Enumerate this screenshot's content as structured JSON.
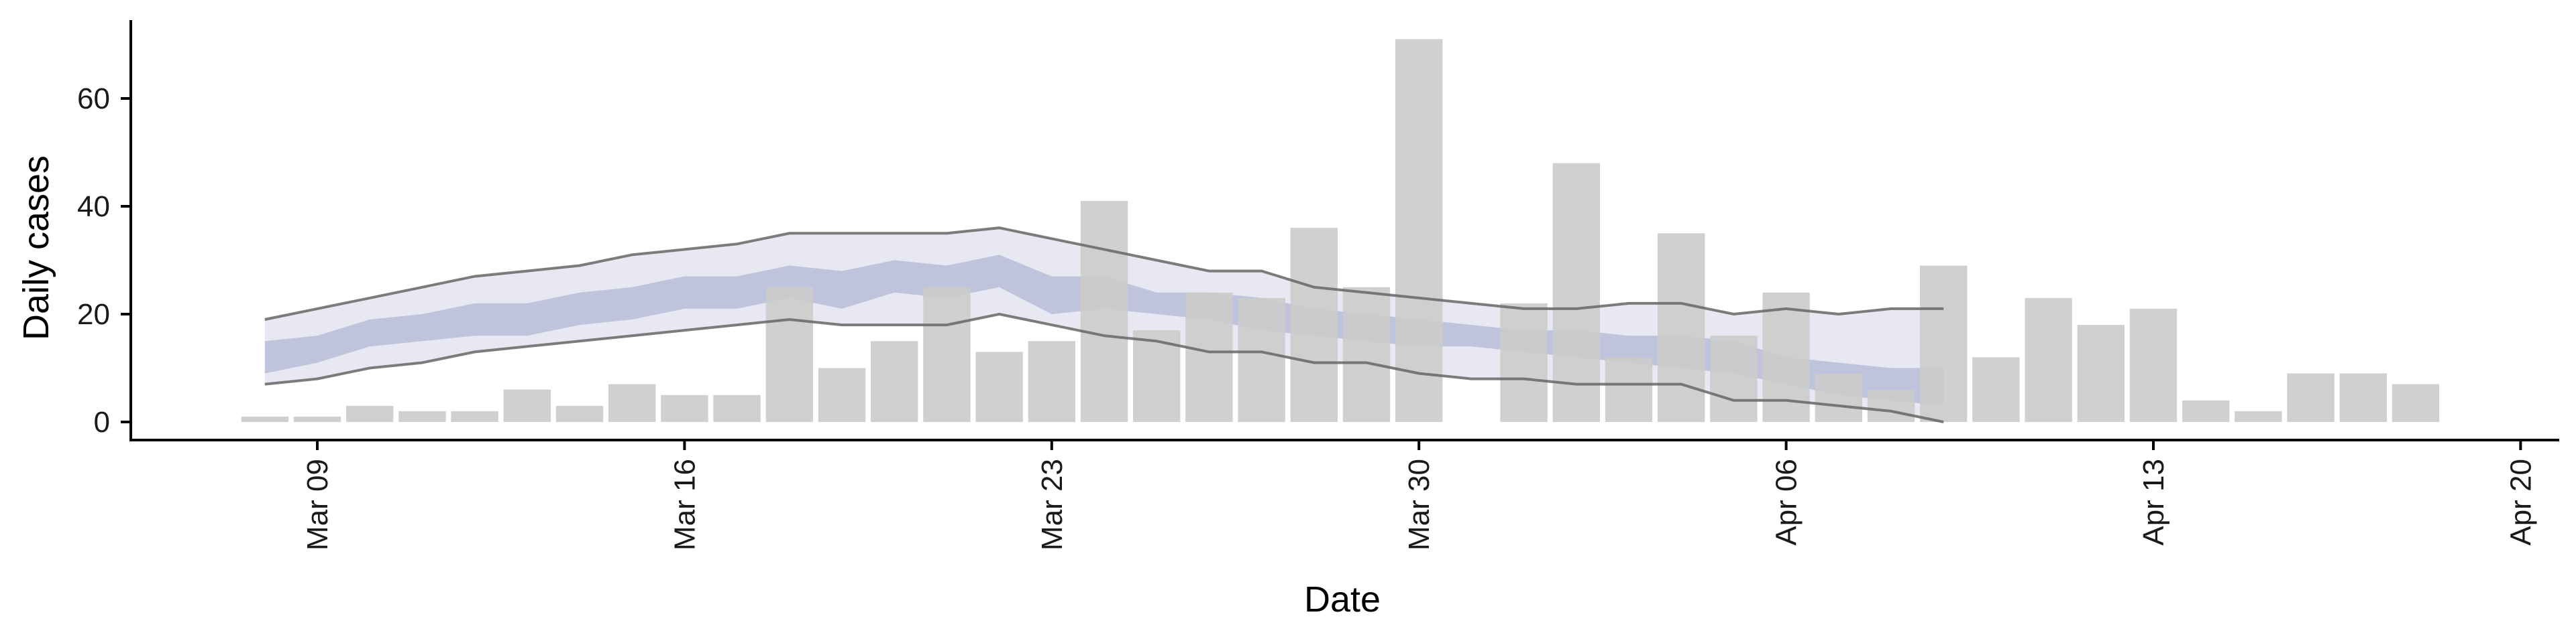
{
  "chart_data": {
    "type": "bar",
    "xlabel": "Date",
    "ylabel": "Daily cases",
    "x_range": [
      "2020-03-05",
      "2020-04-20"
    ],
    "ylim": [
      0,
      72
    ],
    "grid": false,
    "legend": "none",
    "x_ticks": [
      {
        "date": "2020-03-09",
        "label": "Mar 09"
      },
      {
        "date": "2020-03-16",
        "label": "Mar 16"
      },
      {
        "date": "2020-03-23",
        "label": "Mar 23"
      },
      {
        "date": "2020-03-30",
        "label": "Mar 30"
      },
      {
        "date": "2020-04-06",
        "label": "Apr 06"
      },
      {
        "date": "2020-04-13",
        "label": "Apr 13"
      },
      {
        "date": "2020-04-20",
        "label": "Apr 20"
      }
    ],
    "y_ticks": [
      0,
      20,
      40,
      60
    ],
    "bars": {
      "color": "#cccccc",
      "dates": [
        "2020-03-08",
        "2020-03-09",
        "2020-03-10",
        "2020-03-11",
        "2020-03-12",
        "2020-03-13",
        "2020-03-14",
        "2020-03-15",
        "2020-03-16",
        "2020-03-17",
        "2020-03-18",
        "2020-03-19",
        "2020-03-20",
        "2020-03-21",
        "2020-03-22",
        "2020-03-23",
        "2020-03-24",
        "2020-03-25",
        "2020-03-26",
        "2020-03-27",
        "2020-03-28",
        "2020-03-29",
        "2020-03-30",
        "2020-03-31",
        "2020-04-01",
        "2020-04-02",
        "2020-04-03",
        "2020-04-04",
        "2020-04-05",
        "2020-04-06",
        "2020-04-07",
        "2020-04-08",
        "2020-04-09",
        "2020-04-10",
        "2020-04-11",
        "2020-04-12",
        "2020-04-13",
        "2020-04-14",
        "2020-04-15",
        "2020-04-16",
        "2020-04-17",
        "2020-04-18"
      ],
      "values": [
        1,
        1,
        3,
        2,
        2,
        6,
        3,
        7,
        5,
        5,
        25,
        10,
        15,
        25,
        13,
        15,
        41,
        17,
        24,
        23,
        36,
        25,
        71,
        0,
        22,
        48,
        12,
        35,
        16,
        24,
        9,
        6,
        29,
        12,
        23,
        18,
        21,
        4,
        2,
        9,
        9,
        7
      ]
    },
    "band": {
      "dates": [
        "2020-03-08",
        "2020-03-09",
        "2020-03-10",
        "2020-03-11",
        "2020-03-12",
        "2020-03-13",
        "2020-03-14",
        "2020-03-15",
        "2020-03-16",
        "2020-03-17",
        "2020-03-18",
        "2020-03-19",
        "2020-03-20",
        "2020-03-21",
        "2020-03-22",
        "2020-03-23",
        "2020-03-24",
        "2020-03-25",
        "2020-03-26",
        "2020-03-27",
        "2020-03-28",
        "2020-03-29",
        "2020-03-30",
        "2020-03-31",
        "2020-04-01",
        "2020-04-02",
        "2020-04-03",
        "2020-04-04",
        "2020-04-05",
        "2020-04-06",
        "2020-04-07",
        "2020-04-08",
        "2020-04-09"
      ],
      "outer_upper": [
        19,
        21,
        23,
        25,
        27,
        28,
        29,
        31,
        32,
        33,
        35,
        35,
        35,
        35,
        36,
        34,
        32,
        30,
        28,
        28,
        25,
        24,
        23,
        22,
        21,
        21,
        22,
        22,
        20,
        21,
        20,
        21,
        21
      ],
      "outer_lower": [
        7,
        8,
        10,
        11,
        13,
        14,
        15,
        16,
        17,
        18,
        19,
        18,
        18,
        18,
        20,
        18,
        16,
        15,
        13,
        13,
        11,
        11,
        9,
        8,
        8,
        7,
        7,
        7,
        4,
        4,
        3,
        2,
        0
      ],
      "inner_upper": [
        15,
        16,
        19,
        20,
        22,
        22,
        24,
        25,
        27,
        27,
        29,
        28,
        30,
        29,
        31,
        27,
        27,
        24,
        24,
        23,
        21,
        20,
        19,
        18,
        17,
        17,
        16,
        16,
        15,
        12,
        11,
        10,
        10
      ],
      "inner_lower": [
        9,
        11,
        14,
        15,
        16,
        16,
        18,
        19,
        21,
        21,
        23,
        21,
        24,
        23,
        25,
        20,
        21,
        20,
        19,
        17,
        16,
        15,
        14,
        14,
        13,
        12,
        11,
        10,
        9,
        7,
        5,
        4,
        3
      ],
      "outer_color": "#dfe0ee",
      "inner_color": "#8f97c2",
      "line_color": "#666666"
    }
  }
}
